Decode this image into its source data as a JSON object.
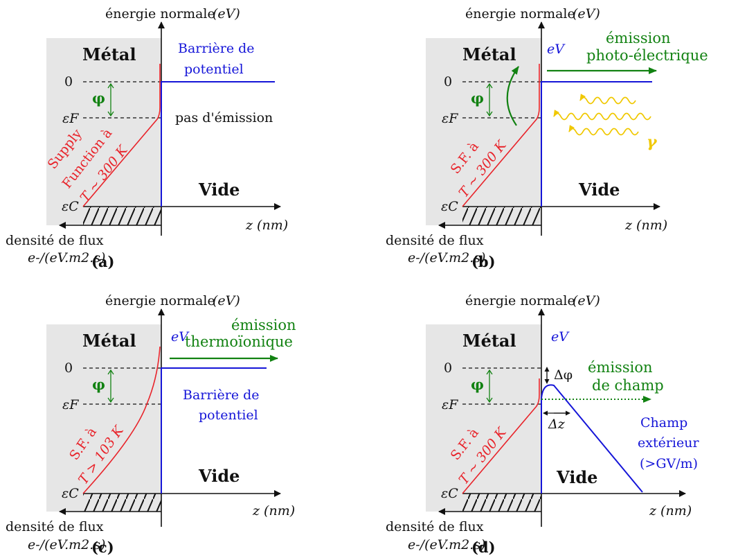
{
  "colors": {
    "metal_bg": "#e6e6e6",
    "supply_function": "#e8232a",
    "barrier": "#1515d8",
    "emission": "#128212",
    "photon": "#f0c800"
  },
  "panels": {
    "a": {
      "caption": "(a)",
      "y_axis_label": "énergie normale",
      "y_axis_unit": "(eV)",
      "x_axis_label": "z (nm)",
      "x_left_label_line1": "densité de flux",
      "x_left_label_line2": "e-/(eV.m2.s)",
      "metal_label": "Métal",
      "vide_label": "Vide",
      "zero_label": "0",
      "ef_label": "εF",
      "ec_label": "εC",
      "phi_label": "φ",
      "barrier_label_line1": "Barrière de",
      "barrier_label_line2": "potentiel",
      "emission_label": "pas d'émission",
      "supply_label_line1": "Supply",
      "supply_label_line2": "Function à",
      "supply_label_line3": "T ~ 300 K"
    },
    "b": {
      "caption": "(b)",
      "y_axis_label": "énergie normale",
      "y_axis_unit": "(eV)",
      "x_axis_label": "z (nm)",
      "x_left_label_line1": "densité de flux",
      "x_left_label_line2": "e-/(eV.m2.s)",
      "metal_label": "Métal",
      "vide_label": "Vide",
      "zero_label": "0",
      "ef_label": "εF",
      "ec_label": "εC",
      "phi_label": "φ",
      "ev_label": "eV",
      "emission_label_line1": "émission",
      "emission_label_line2": "photo-électrique",
      "gamma_label": "γ",
      "supply_label_line1": "S.F. à",
      "supply_label_line2": "T ~ 300 K"
    },
    "c": {
      "caption": "(c)",
      "y_axis_label": "énergie normale",
      "y_axis_unit": "(eV)",
      "x_axis_label": "z (nm)",
      "x_left_label_line1": "densité de flux",
      "x_left_label_line2": "e-/(eV.m2.s)",
      "metal_label": "Métal",
      "vide_label": "Vide",
      "zero_label": "0",
      "ef_label": "εF",
      "ec_label": "εC",
      "phi_label": "φ",
      "ev_label": "eV",
      "emission_label_line1": "émission",
      "emission_label_line2": "thermoïonique",
      "barrier_label_line1": "Barrière de",
      "barrier_label_line2": "potentiel",
      "supply_label_line1": "S.F. à",
      "supply_label_line2": "T > 103 K"
    },
    "d": {
      "caption": "(d)",
      "y_axis_label": "énergie normale",
      "y_axis_unit": "(eV)",
      "x_axis_label": "z (nm)",
      "x_left_label_line1": "densité de flux",
      "x_left_label_line2": "e-/(eV.m2.s)",
      "metal_label": "Métal",
      "vide_label": "Vide",
      "zero_label": "0",
      "ef_label": "εF",
      "ec_label": "εC",
      "phi_label": "φ",
      "ev_label": "eV",
      "delta_phi_label": "Δφ",
      "delta_z_label": "Δz",
      "emission_label_line1": "émission",
      "emission_label_line2": "de champ",
      "field_label_line1": "Champ",
      "field_label_line2": "extérieur",
      "field_label_line3": "(>GV/m)",
      "supply_label_line1": "S.F. à",
      "supply_label_line2": "T ~ 300 K"
    }
  }
}
